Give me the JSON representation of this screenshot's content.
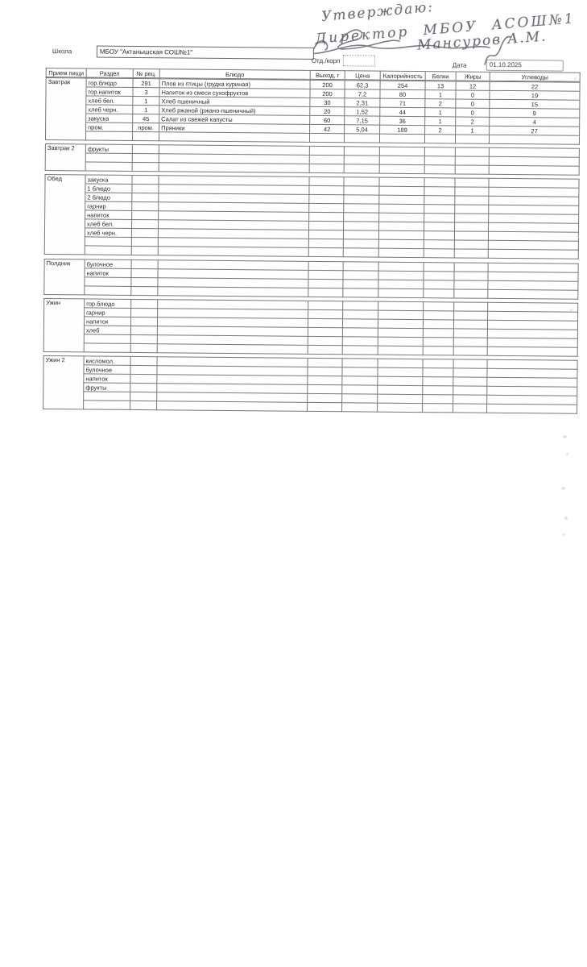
{
  "handwriting": {
    "line1": "Утверждаю:",
    "line2": "Директор МБОУ АСОШ№1",
    "line3": "Мансуров А.М."
  },
  "header": {
    "school_label": "Школа",
    "school_value": "МБОУ \"Актанышская СОШ№1\"",
    "dept_label": "Отд./корп",
    "date_label": "Дата",
    "date_value": "01.10.2025"
  },
  "table": {
    "columns": [
      "Прием пищи",
      "Раздел",
      "№ рец.",
      "Блюдо",
      "Выход, г",
      "Цена",
      "Калорийность",
      "Белки",
      "Жиры",
      "Углеводы"
    ],
    "sections": [
      {
        "meal": "Завтрак",
        "rows": [
          [
            "гор.блюдо",
            "291",
            "Плов из птицы (грудка куриная)",
            "200",
            "62,3",
            "254",
            "13",
            "12",
            "22"
          ],
          [
            "гор.напиток",
            "3",
            "Напиток из смеси сухофруктов",
            "200",
            "7,2",
            "80",
            "1",
            "0",
            "19"
          ],
          [
            "хлеб бел.",
            "1",
            "Хлеб пшеничный",
            "30",
            "2,31",
            "71",
            "2",
            "0",
            "15"
          ],
          [
            "хлеб черн.",
            "1",
            "Хлеб ржаной (ржано-пшеничный)",
            "20",
            "1,52",
            "44",
            "1",
            "0",
            "9"
          ],
          [
            "закуска",
            "45",
            "Салат из свежей капусты",
            "60",
            "7,15",
            "36",
            "1",
            "2",
            "4"
          ],
          [
            "пром.",
            "пром.",
            "Пряники",
            "42",
            "5,04",
            "189",
            "2",
            "1",
            "27"
          ],
          [
            "",
            "",
            "",
            "",
            "",
            "",
            "",
            "",
            ""
          ]
        ]
      },
      {
        "meal": "Завтрак 2",
        "rows": [
          [
            "фрукты",
            "",
            "",
            "",
            "",
            "",
            "",
            "",
            ""
          ],
          [
            "",
            "",
            "",
            "",
            "",
            "",
            "",
            "",
            ""
          ],
          [
            "",
            "",
            "",
            "",
            "",
            "",
            "",
            "",
            ""
          ]
        ]
      },
      {
        "meal": "Обед",
        "rows": [
          [
            "закуска",
            "",
            "",
            "",
            "",
            "",
            "",
            "",
            ""
          ],
          [
            "1 блюдо",
            "",
            "",
            "",
            "",
            "",
            "",
            "",
            ""
          ],
          [
            "2 блюдо",
            "",
            "",
            "",
            "",
            "",
            "",
            "",
            ""
          ],
          [
            "гарнир",
            "",
            "",
            "",
            "",
            "",
            "",
            "",
            ""
          ],
          [
            "напиток",
            "",
            "",
            "",
            "",
            "",
            "",
            "",
            ""
          ],
          [
            "хлеб бел.",
            "",
            "",
            "",
            "",
            "",
            "",
            "",
            ""
          ],
          [
            "хлеб черн.",
            "",
            "",
            "",
            "",
            "",
            "",
            "",
            ""
          ],
          [
            "",
            "",
            "",
            "",
            "",
            "",
            "",
            "",
            ""
          ],
          [
            "",
            "",
            "",
            "",
            "",
            "",
            "",
            "",
            ""
          ]
        ]
      },
      {
        "meal": "Полдник",
        "rows": [
          [
            "булочное",
            "",
            "",
            "",
            "",
            "",
            "",
            "",
            ""
          ],
          [
            "напиток",
            "",
            "",
            "",
            "",
            "",
            "",
            "",
            ""
          ],
          [
            "",
            "",
            "",
            "",
            "",
            "",
            "",
            "",
            ""
          ],
          [
            "",
            "",
            "",
            "",
            "",
            "",
            "",
            "",
            ""
          ]
        ]
      },
      {
        "meal": "Ужин",
        "rows": [
          [
            "гор.блюдо",
            "",
            "",
            "",
            "",
            "",
            "",
            "",
            ""
          ],
          [
            "гарнир",
            "",
            "",
            "",
            "",
            "",
            "",
            "",
            ""
          ],
          [
            "напиток",
            "",
            "",
            "",
            "",
            "",
            "",
            "",
            ""
          ],
          [
            "хлеб",
            "",
            "",
            "",
            "",
            "",
            "",
            "",
            ""
          ],
          [
            "",
            "",
            "",
            "",
            "",
            "",
            "",
            "",
            ""
          ],
          [
            "",
            "",
            "",
            "",
            "",
            "",
            "",
            "",
            ""
          ]
        ]
      },
      {
        "meal": "Ужин 2",
        "rows": [
          [
            "кисломол.",
            "",
            "",
            "",
            "",
            "",
            "",
            "",
            ""
          ],
          [
            "булочное",
            "",
            "",
            "",
            "",
            "",
            "",
            "",
            ""
          ],
          [
            "напиток",
            "",
            "",
            "",
            "",
            "",
            "",
            "",
            ""
          ],
          [
            "фрукты",
            "",
            "",
            "",
            "",
            "",
            "",
            "",
            ""
          ],
          [
            "",
            "",
            "",
            "",
            "",
            "",
            "",
            "",
            ""
          ],
          [
            "",
            "",
            "",
            "",
            "",
            "",
            "",
            "",
            ""
          ]
        ]
      }
    ]
  }
}
